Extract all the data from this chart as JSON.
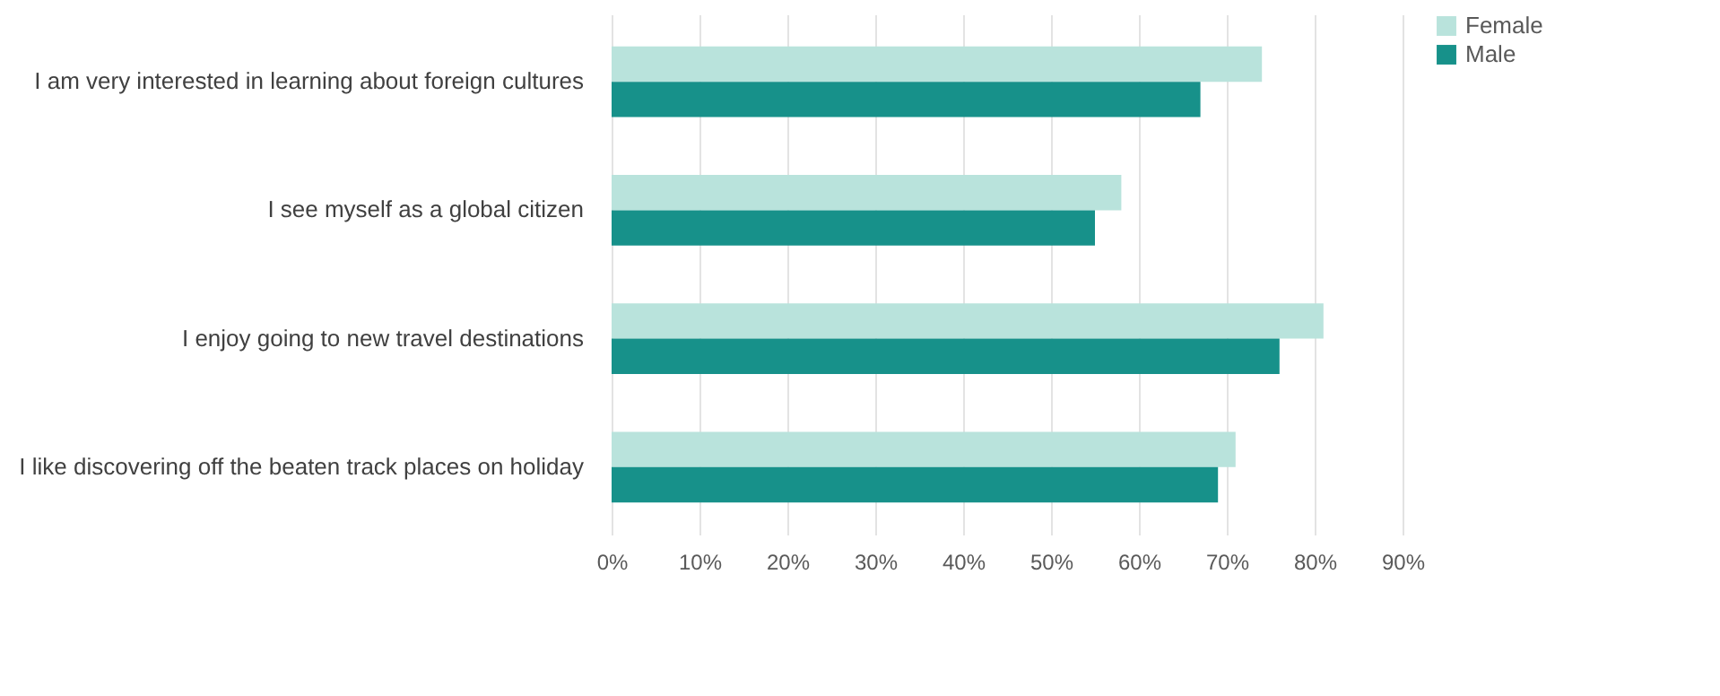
{
  "chart_data": {
    "type": "bar",
    "orientation": "horizontal",
    "categories": [
      "I am very interested in learning about foreign cultures",
      "I see myself as a global citizen",
      "I enjoy going to new travel destinations",
      "I like discovering off the beaten track places on holiday"
    ],
    "series": [
      {
        "name": "Female",
        "color": "#b9e3dc",
        "values": [
          74,
          58,
          81,
          71
        ]
      },
      {
        "name": "Male",
        "color": "#17918a",
        "values": [
          67,
          55,
          76,
          69
        ]
      }
    ],
    "xlim": [
      0,
      90
    ],
    "xticks": [
      {
        "value": 0,
        "label": "0%"
      },
      {
        "value": 10,
        "label": "10%"
      },
      {
        "value": 20,
        "label": "20%"
      },
      {
        "value": 30,
        "label": "30%"
      },
      {
        "value": 40,
        "label": "40%"
      },
      {
        "value": 50,
        "label": "50%"
      },
      {
        "value": 60,
        "label": "60%"
      },
      {
        "value": 70,
        "label": "70%"
      },
      {
        "value": 80,
        "label": "80%"
      },
      {
        "value": 90,
        "label": "90%"
      }
    ],
    "grid": "x",
    "legend": "right"
  }
}
